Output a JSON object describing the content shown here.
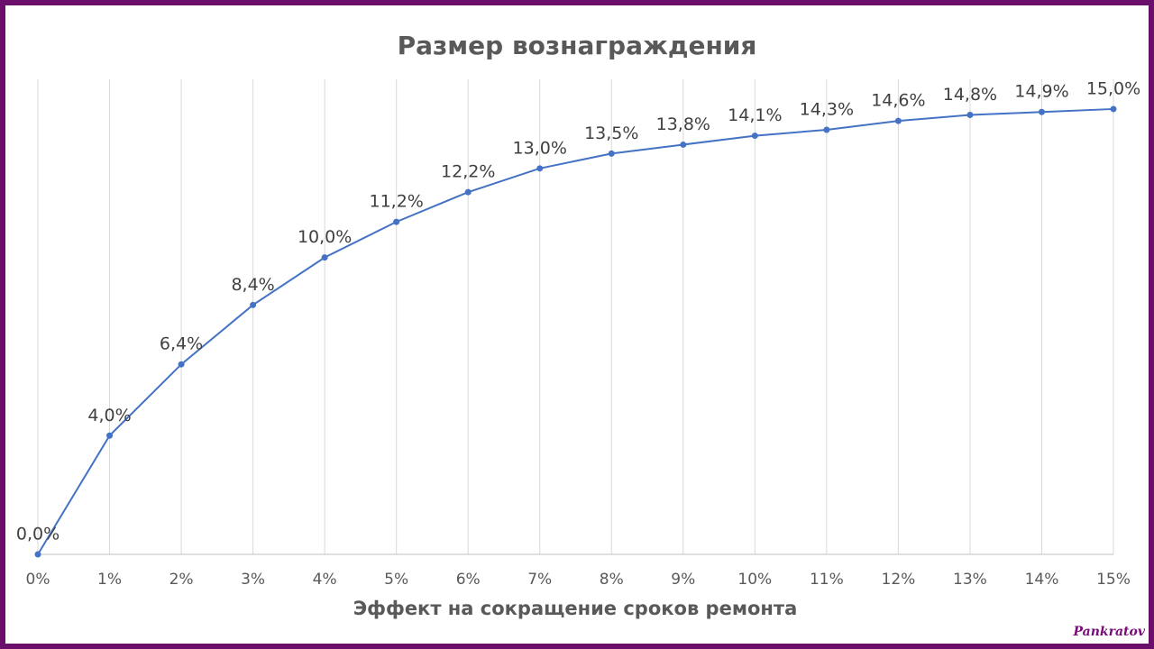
{
  "chart_data": {
    "type": "line",
    "title": "Размер вознаграждения",
    "x_label": "Эффект на сокращение сроков ремонта",
    "categories": [
      "0%",
      "1%",
      "2%",
      "3%",
      "4%",
      "5%",
      "6%",
      "7%",
      "8%",
      "9%",
      "10%",
      "11%",
      "12%",
      "13%",
      "14%",
      "15%"
    ],
    "values": [
      0,
      4.0,
      6.4,
      8.4,
      10.0,
      11.2,
      12.2,
      13.0,
      13.5,
      13.8,
      14.1,
      14.3,
      14.6,
      14.8,
      14.9,
      15.0
    ],
    "value_labels": [
      "0,0%",
      "4,0%",
      "6,4%",
      "8,4%",
      "10,0%",
      "11,2%",
      "12,2%",
      "13,0%",
      "13,5%",
      "13,8%",
      "14,1%",
      "14,3%",
      "14,6%",
      "14,8%",
      "14,9%",
      "15,0%"
    ],
    "color": "#4472c4",
    "ylim": [
      0,
      16
    ],
    "grid": true
  },
  "signature": "Pankratov"
}
